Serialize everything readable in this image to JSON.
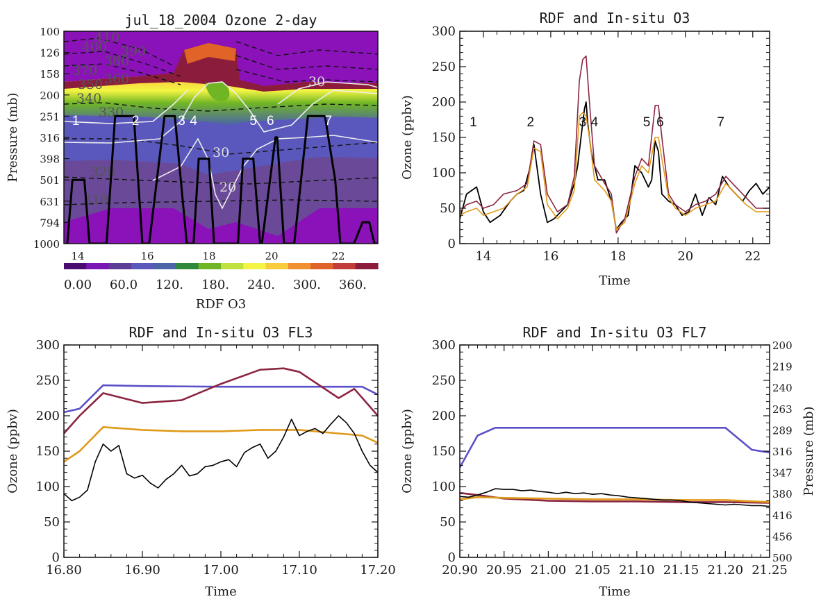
{
  "colors": {
    "black": "#000000",
    "maroon": "#8b2540",
    "orange": "#e09a1a",
    "blue": "#5a50c8",
    "contour_white": "#eeeeee",
    "purple_bg": "#8a12b8"
  },
  "chart_data": [
    {
      "type": "heatmap",
      "title": "jul_18_2004  Ozone 2-day",
      "ylabel": "Pressure (mb)",
      "y_ticks": [
        "100",
        "126",
        "158",
        "200",
        "251",
        "316",
        "398",
        "501",
        "631",
        "794",
        "1000"
      ],
      "x_ticks": [
        "14",
        "16",
        "18",
        "20",
        "22"
      ],
      "xlim": [
        13.3,
        22.5
      ],
      "colorbar_label": "RDF O3",
      "colorbar_ticks": [
        "0.00",
        "60.0",
        "120.",
        "180.",
        "240.",
        "300.",
        "360."
      ],
      "colorbar_colors": [
        "#4a0c6e",
        "#7a16b4",
        "#5c3c94",
        "#5a58bc",
        "#4c64a8",
        "#2e8a3a",
        "#70b624",
        "#c0e040",
        "#f4f444",
        "#f8cc3a",
        "#f09030",
        "#e06428",
        "#c43c3a",
        "#8c1c3c"
      ],
      "contour_labels": [
        "410",
        "400",
        "390",
        "380",
        "370",
        "360",
        "350",
        "340",
        "330",
        "320",
        "310"
      ],
      "white_contour_labels": [
        "30",
        "30",
        "20"
      ],
      "flight_labels": [
        "1",
        "2",
        "3",
        "4",
        "5",
        "6",
        "7"
      ],
      "flight_path": {
        "x": [
          13.4,
          13.55,
          13.9,
          14.05,
          14.55,
          14.8,
          15.35,
          15.6,
          15.8,
          16.25,
          16.55,
          16.9,
          17.1,
          17.25,
          17.35,
          17.4,
          17.55,
          17.7,
          18.4,
          18.55,
          18.85,
          19.05,
          19.1,
          19.5,
          19.55,
          19.75,
          20.05,
          20.45,
          20.95,
          21.25,
          21.4,
          21.8,
          22.05,
          22.25,
          22.4,
          22.5
        ],
        "y": [
          1000,
          501,
          501,
          1000,
          1000,
          251,
          251,
          1000,
          1000,
          251,
          251,
          1000,
          1000,
          398,
          398,
          398,
          398,
          1000,
          1000,
          398,
          398,
          1000,
          1000,
          316,
          316,
          1000,
          1000,
          251,
          251,
          501,
          1000,
          1000,
          794,
          794,
          1000,
          1000
        ]
      }
    },
    {
      "type": "line",
      "title": "RDF and In-situ O3",
      "xlabel": "Time",
      "ylabel": "Ozone (ppbv)",
      "xlim": [
        13.3,
        22.5
      ],
      "ylim": [
        0,
        300
      ],
      "x_ticks": [
        14,
        16,
        18,
        20,
        22
      ],
      "y_ticks": [
        0,
        50,
        100,
        150,
        200,
        250,
        300
      ],
      "flight_labels": [
        "1",
        "2",
        "3",
        "4",
        "5",
        "6",
        "7"
      ],
      "series": [
        {
          "color": "black",
          "x": [
            13.3,
            13.5,
            13.8,
            14.0,
            14.2,
            14.5,
            14.8,
            15.0,
            15.2,
            15.4,
            15.5,
            15.7,
            15.9,
            16.1,
            16.3,
            16.5,
            16.7,
            16.8,
            16.9,
            17.0,
            17.05,
            17.1,
            17.2,
            17.4,
            17.6,
            17.8,
            17.95,
            18.1,
            18.3,
            18.5,
            18.7,
            18.9,
            19.0,
            19.1,
            19.2,
            19.3,
            19.5,
            19.7,
            19.9,
            20.1,
            20.3,
            20.5,
            20.7,
            20.9,
            21.1,
            21.3,
            21.5,
            21.7,
            21.9,
            22.1,
            22.3,
            22.5
          ],
          "y": [
            35,
            70,
            80,
            45,
            30,
            40,
            60,
            70,
            75,
            110,
            140,
            70,
            30,
            35,
            45,
            55,
            85,
            110,
            150,
            190,
            200,
            170,
            130,
            90,
            90,
            60,
            20,
            30,
            40,
            110,
            100,
            80,
            90,
            145,
            130,
            70,
            60,
            55,
            40,
            45,
            70,
            40,
            65,
            55,
            95,
            80,
            70,
            60,
            75,
            85,
            70,
            80
          ]
        },
        {
          "color": "maroon",
          "x": [
            13.3,
            13.5,
            13.8,
            14.0,
            14.3,
            14.6,
            15.0,
            15.3,
            15.5,
            15.7,
            15.9,
            16.2,
            16.5,
            16.7,
            16.85,
            16.95,
            17.05,
            17.15,
            17.3,
            17.6,
            17.8,
            17.95,
            18.2,
            18.5,
            18.7,
            18.9,
            19.1,
            19.2,
            19.3,
            19.5,
            19.7,
            20.0,
            20.3,
            20.6,
            20.9,
            21.2,
            21.5,
            21.8,
            22.1,
            22.5
          ],
          "y": [
            45,
            55,
            60,
            50,
            55,
            70,
            75,
            85,
            145,
            140,
            70,
            45,
            55,
            95,
            230,
            260,
            265,
            200,
            110,
            85,
            70,
            15,
            35,
            95,
            120,
            110,
            195,
            195,
            150,
            70,
            55,
            45,
            55,
            60,
            70,
            95,
            80,
            65,
            50,
            50
          ]
        },
        {
          "color": "orange",
          "x": [
            13.3,
            13.5,
            13.8,
            14.0,
            14.3,
            14.6,
            15.0,
            15.3,
            15.5,
            15.7,
            15.9,
            16.2,
            16.5,
            16.7,
            16.85,
            16.95,
            17.05,
            17.15,
            17.3,
            17.6,
            17.8,
            17.95,
            18.2,
            18.5,
            18.7,
            18.9,
            19.1,
            19.2,
            19.3,
            19.5,
            19.7,
            20.0,
            20.3,
            20.6,
            20.9,
            21.2,
            21.5,
            21.8,
            22.1,
            22.5
          ],
          "y": [
            40,
            45,
            50,
            40,
            45,
            50,
            70,
            80,
            135,
            130,
            55,
            35,
            50,
            75,
            180,
            185,
            180,
            150,
            90,
            75,
            60,
            20,
            30,
            85,
            110,
            100,
            150,
            150,
            120,
            65,
            50,
            40,
            50,
            55,
            60,
            85,
            70,
            55,
            45,
            45
          ]
        }
      ]
    },
    {
      "type": "line",
      "title": "RDF and In-situ O3 FL3",
      "xlabel": "Time",
      "ylabel": "Ozone (ppbv)",
      "xlim": [
        16.8,
        17.2
      ],
      "ylim": [
        0,
        300
      ],
      "x_ticks": [
        "16.80",
        "16.90",
        "17.00",
        "17.10",
        "17.20"
      ],
      "y_ticks": [
        0,
        50,
        100,
        150,
        200,
        250,
        300
      ],
      "series": [
        {
          "color": "blue",
          "x": [
            16.8,
            16.82,
            16.85,
            16.9,
            17.0,
            17.1,
            17.18,
            17.2
          ],
          "y": [
            205,
            210,
            243,
            242,
            241,
            241,
            241,
            230
          ]
        },
        {
          "color": "maroon",
          "x": [
            16.8,
            16.82,
            16.85,
            16.9,
            16.95,
            17.0,
            17.05,
            17.08,
            17.1,
            17.15,
            17.17,
            17.2
          ],
          "y": [
            175,
            200,
            232,
            218,
            222,
            245,
            265,
            267,
            262,
            225,
            238,
            200
          ]
        },
        {
          "color": "orange",
          "x": [
            16.8,
            16.82,
            16.85,
            16.9,
            16.95,
            17.0,
            17.05,
            17.1,
            17.15,
            17.18,
            17.2
          ],
          "y": [
            135,
            150,
            184,
            180,
            178,
            178,
            180,
            180,
            175,
            172,
            162
          ]
        },
        {
          "color": "black",
          "x": [
            16.8,
            16.81,
            16.82,
            16.83,
            16.84,
            16.85,
            16.86,
            16.87,
            16.88,
            16.89,
            16.9,
            16.91,
            16.92,
            16.93,
            16.94,
            16.95,
            16.96,
            16.97,
            16.98,
            16.99,
            17.0,
            17.01,
            17.02,
            17.03,
            17.04,
            17.05,
            17.06,
            17.07,
            17.08,
            17.09,
            17.1,
            17.11,
            17.12,
            17.13,
            17.14,
            17.15,
            17.16,
            17.17,
            17.18,
            17.19,
            17.2
          ],
          "y": [
            90,
            80,
            85,
            95,
            135,
            160,
            150,
            158,
            118,
            112,
            116,
            105,
            98,
            110,
            118,
            130,
            115,
            118,
            128,
            130,
            135,
            138,
            128,
            148,
            155,
            160,
            140,
            150,
            170,
            195,
            172,
            178,
            182,
            175,
            188,
            200,
            190,
            175,
            150,
            130,
            120
          ]
        }
      ]
    },
    {
      "type": "line",
      "title": "RDF and In-situ O3 FL7",
      "xlabel": "Time",
      "ylabel": "Ozone (ppbv)",
      "y2label": "Pressure (mb)",
      "xlim": [
        20.9,
        21.25
      ],
      "ylim": [
        0,
        300
      ],
      "x_ticks": [
        "20.90",
        "20.95",
        "21.00",
        "21.05",
        "21.10",
        "21.15",
        "21.20",
        "21.25"
      ],
      "y_ticks": [
        0,
        50,
        100,
        150,
        200,
        250,
        300
      ],
      "y2_ticks": [
        "200",
        "219",
        "240",
        "263",
        "289",
        "316",
        "347",
        "380",
        "416",
        "456",
        "500"
      ],
      "series": [
        {
          "color": "blue",
          "x": [
            20.9,
            20.92,
            20.94,
            21.0,
            21.1,
            21.2,
            21.23,
            21.25
          ],
          "y": [
            127,
            172,
            183,
            183,
            183,
            183,
            152,
            148
          ]
        },
        {
          "color": "maroon",
          "x": [
            20.9,
            20.92,
            20.95,
            21.0,
            21.05,
            21.1,
            21.15,
            21.2,
            21.25
          ],
          "y": [
            91,
            88,
            83,
            80,
            79,
            79,
            78,
            78,
            77
          ]
        },
        {
          "color": "orange",
          "x": [
            20.9,
            20.92,
            20.95,
            21.0,
            21.05,
            21.1,
            21.15,
            21.2,
            21.25
          ],
          "y": [
            82,
            85,
            84,
            83,
            82,
            82,
            81,
            81,
            78
          ]
        },
        {
          "color": "black",
          "x": [
            20.9,
            20.91,
            20.92,
            20.93,
            20.94,
            20.95,
            20.96,
            20.97,
            20.98,
            20.99,
            21.0,
            21.01,
            21.02,
            21.03,
            21.04,
            21.05,
            21.06,
            21.07,
            21.08,
            21.09,
            21.1,
            21.11,
            21.12,
            21.13,
            21.14,
            21.15,
            21.16,
            21.17,
            21.18,
            21.19,
            21.2,
            21.21,
            21.22,
            21.23,
            21.24,
            21.25
          ],
          "y": [
            86,
            85,
            88,
            92,
            97,
            96,
            96,
            94,
            95,
            93,
            92,
            90,
            92,
            90,
            91,
            89,
            90,
            88,
            87,
            85,
            84,
            83,
            82,
            81,
            81,
            80,
            78,
            77,
            76,
            75,
            74,
            75,
            74,
            73,
            73,
            72
          ]
        }
      ]
    }
  ]
}
